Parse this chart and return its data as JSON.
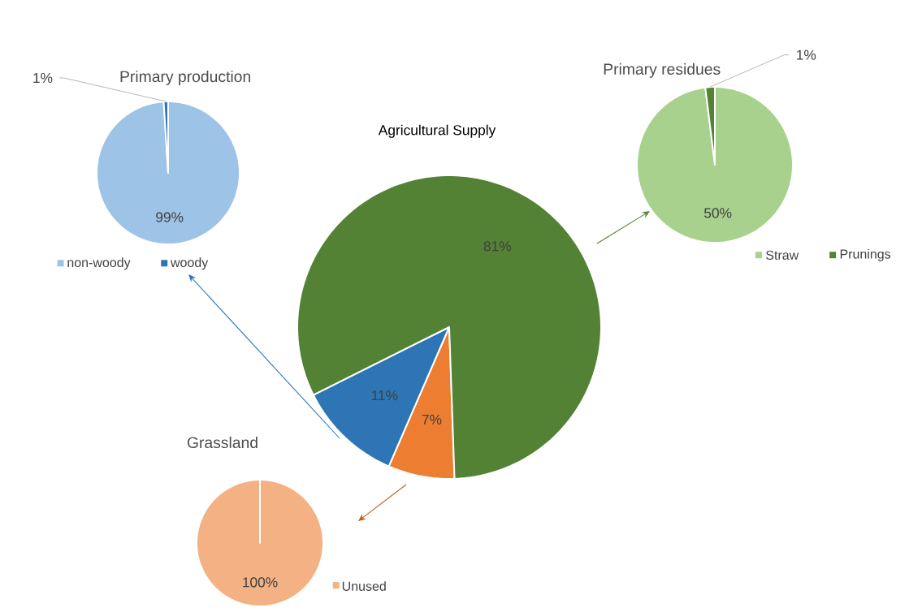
{
  "chart_data": [
    {
      "type": "pie",
      "title": "Primary production",
      "categories": [
        "non-woody",
        "woody"
      ],
      "values": [
        99,
        1
      ],
      "colors": [
        "#9dc3e6",
        "#2e75b6"
      ],
      "value_labels": [
        "99%",
        "1%"
      ],
      "legend": "bottom"
    },
    {
      "type": "pie",
      "title": "Primary residues",
      "categories": [
        "Straw",
        "Prunings"
      ],
      "values": [
        50,
        1
      ],
      "colors": [
        "#a9d18e",
        "#548235"
      ],
      "value_labels": [
        "50%",
        "1%"
      ],
      "legend": "bottom"
    },
    {
      "type": "pie",
      "title": "Agricultural Supply",
      "categories": [
        null,
        null,
        null
      ],
      "values": [
        7,
        11,
        81
      ],
      "colors": [
        "#ed7d31",
        "#2e75b6",
        "#548235"
      ],
      "value_labels": [
        "7%",
        "11%",
        "81%"
      ]
    },
    {
      "type": "pie",
      "title": "Grassland",
      "categories": [
        "Unused"
      ],
      "values": [
        100
      ],
      "colors": [
        "#f4b183"
      ],
      "value_labels": [
        "100%"
      ],
      "legend": "bottom right"
    }
  ]
}
